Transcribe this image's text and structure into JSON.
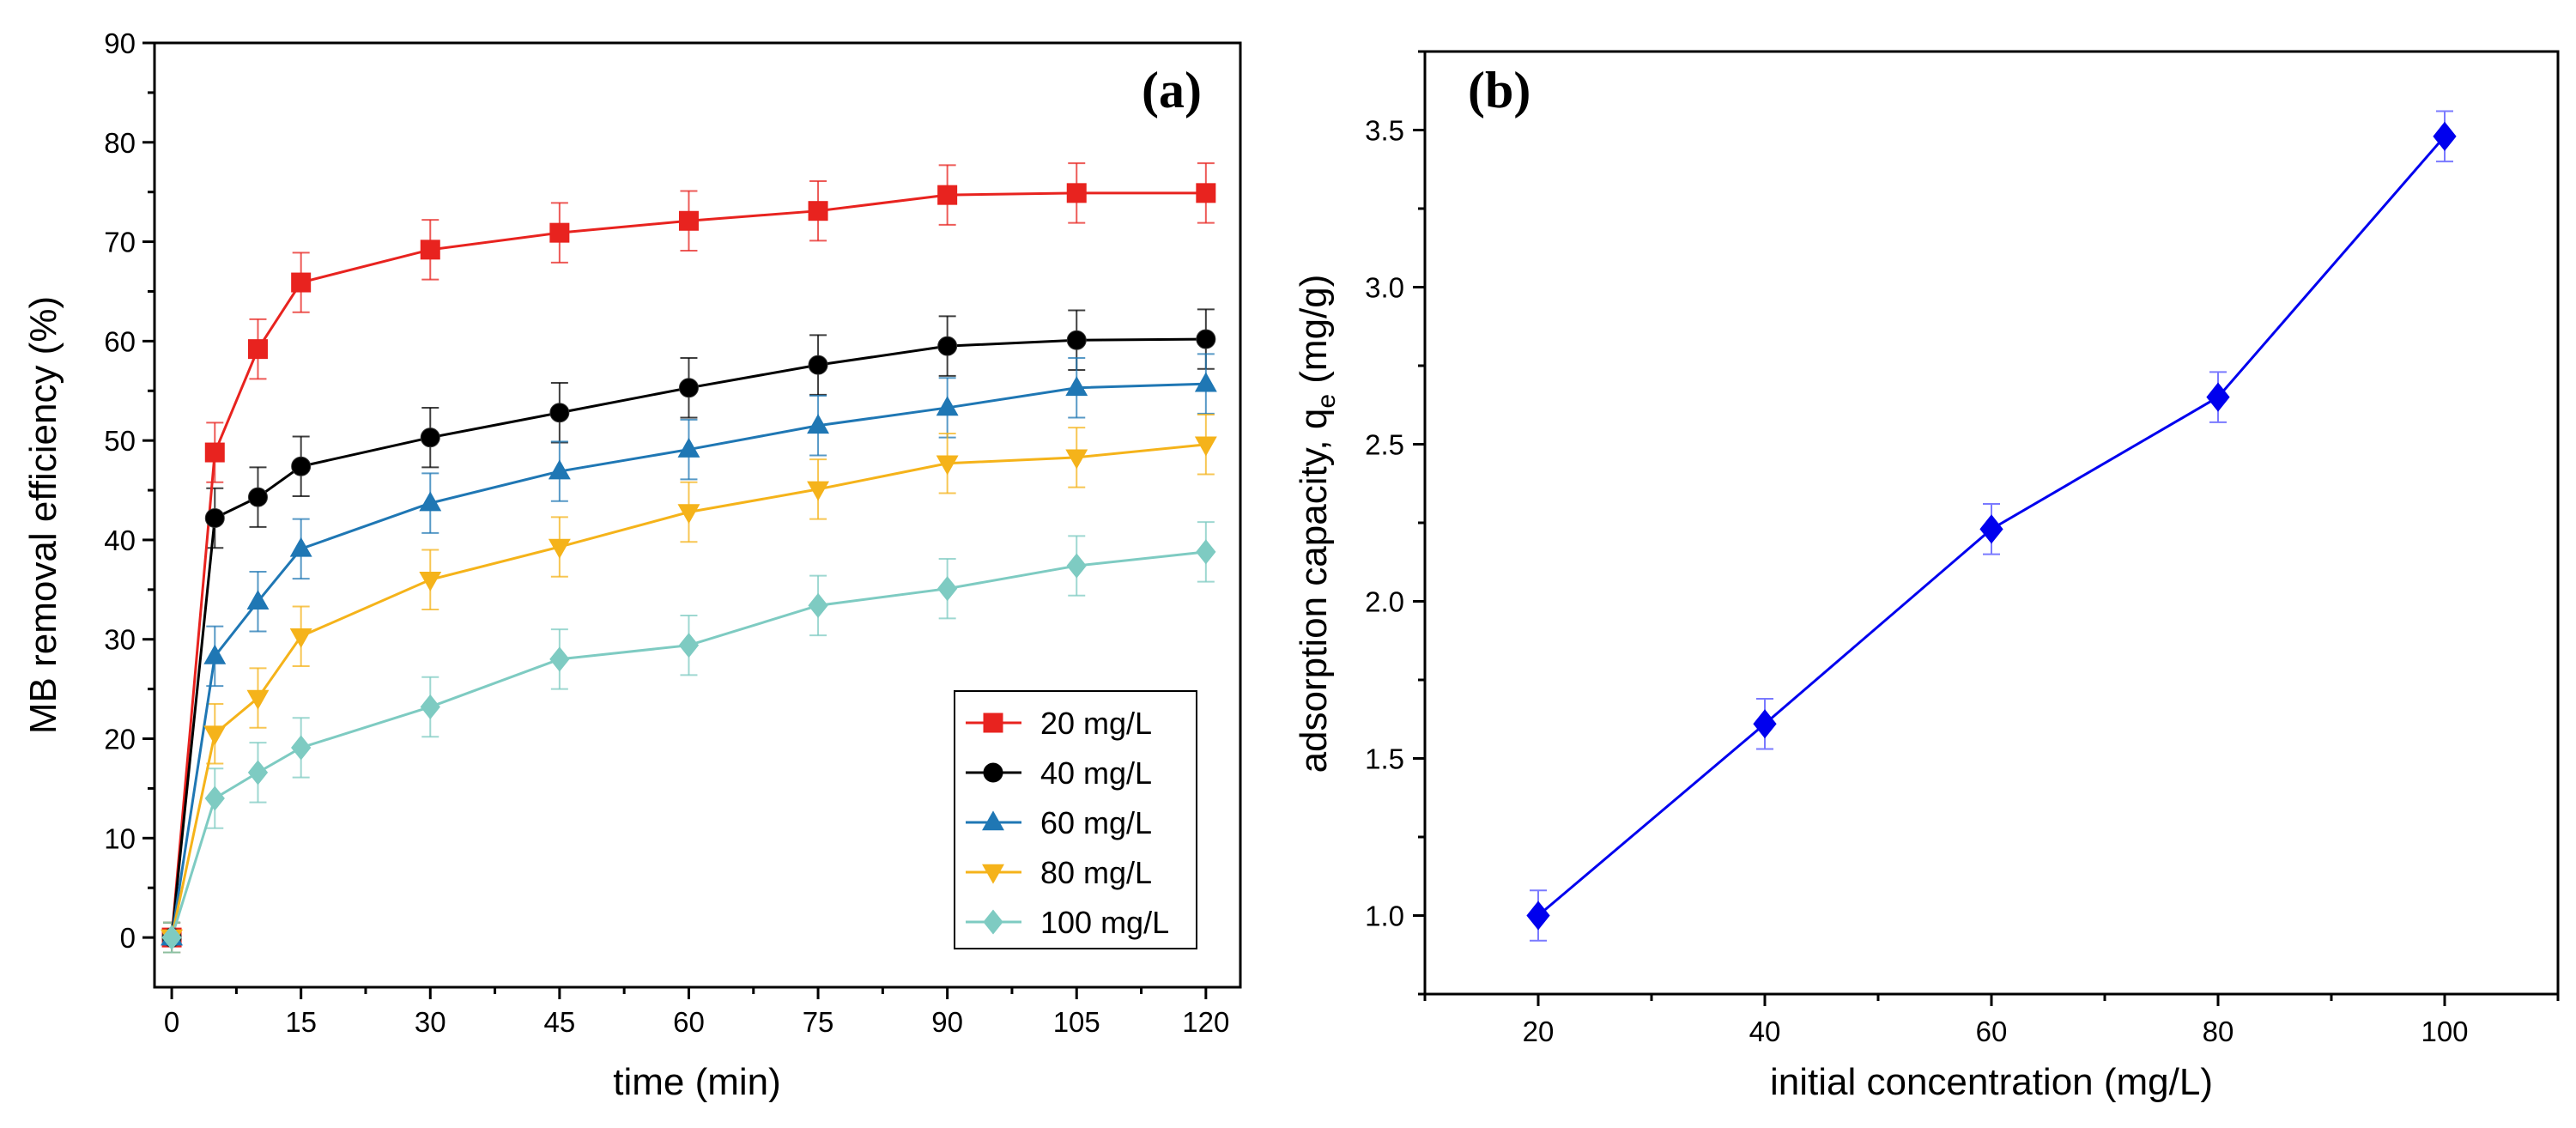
{
  "chart_data": [
    {
      "type": "line",
      "panel_label": "(a)",
      "xlabel": "time (min)",
      "ylabel": "MB removal efficiency (%)",
      "xlim": [
        -2,
        124
      ],
      "ylim": [
        -5,
        90
      ],
      "xticks": [
        0,
        15,
        30,
        45,
        60,
        75,
        90,
        105,
        120
      ],
      "yticks": [
        0,
        10,
        20,
        30,
        40,
        50,
        60,
        70,
        80,
        90
      ],
      "legend_position": "bottom-right",
      "x": [
        0,
        5,
        10,
        15,
        30,
        45,
        60,
        75,
        90,
        105,
        120
      ],
      "series": [
        {
          "name": "20 mg/L",
          "color": "#e8231f",
          "marker": "square",
          "values": [
            0,
            48.8,
            59.2,
            65.9,
            69.2,
            70.9,
            72.1,
            73.1,
            74.7,
            74.9,
            74.9
          ],
          "errors": [
            1.5,
            3,
            3,
            3,
            3,
            3,
            3,
            3,
            3,
            3,
            3
          ]
        },
        {
          "name": "40 mg/L",
          "color": "#000000",
          "marker": "circle",
          "values": [
            0,
            42.2,
            44.3,
            47.4,
            50.3,
            52.8,
            55.3,
            57.6,
            59.5,
            60.1,
            60.2
          ],
          "errors": [
            1.5,
            3,
            3,
            3,
            3,
            3,
            3,
            3,
            3,
            3,
            3
          ]
        },
        {
          "name": "60 mg/L",
          "color": "#1f77b4",
          "marker": "triangle-up",
          "values": [
            0,
            28.3,
            33.8,
            39.1,
            43.7,
            46.9,
            49.1,
            51.5,
            53.3,
            55.3,
            55.7
          ],
          "errors": [
            1.5,
            3,
            3,
            3,
            3,
            3,
            3,
            3,
            3,
            3,
            3
          ]
        },
        {
          "name": "80 mg/L",
          "color": "#f5b31a",
          "marker": "triangle-down",
          "values": [
            0,
            20.5,
            24.1,
            30.3,
            36.0,
            39.3,
            42.8,
            45.1,
            47.7,
            48.3,
            49.6
          ],
          "errors": [
            1.5,
            3,
            3,
            3,
            3,
            3,
            3,
            3,
            3,
            3,
            3
          ]
        },
        {
          "name": "100 mg/L",
          "color": "#7ecbc2",
          "marker": "diamond",
          "values": [
            0,
            14.0,
            16.6,
            19.1,
            23.2,
            28.0,
            29.4,
            33.4,
            35.1,
            37.4,
            38.8
          ],
          "errors": [
            1.5,
            3,
            3,
            3,
            3,
            3,
            3,
            3,
            3,
            3,
            3
          ]
        }
      ]
    },
    {
      "type": "line",
      "panel_label": "(b)",
      "xlabel": "initial concentration (mg/L)",
      "ylabel_main": "adsorption capacity, q",
      "ylabel_sub": "e",
      "ylabel_unit": " (mg/g)",
      "xlim": [
        10,
        110
      ],
      "ylim": [
        0.75,
        3.75
      ],
      "xticks": [
        20,
        40,
        60,
        80,
        100
      ],
      "yticks": [
        1.0,
        1.5,
        2.0,
        2.5,
        3.0,
        3.5
      ],
      "ytick_labels": [
        "1.0",
        "1.5",
        "2.0",
        "2.5",
        "3.0",
        "3.5"
      ],
      "x": [
        20,
        40,
        60,
        80,
        100
      ],
      "series": [
        {
          "name": "qe",
          "color": "#0000ee",
          "marker": "diamond",
          "values": [
            1.0,
            1.61,
            2.23,
            2.65,
            3.48
          ],
          "errors": [
            0.08,
            0.08,
            0.08,
            0.08,
            0.08
          ]
        }
      ]
    }
  ]
}
